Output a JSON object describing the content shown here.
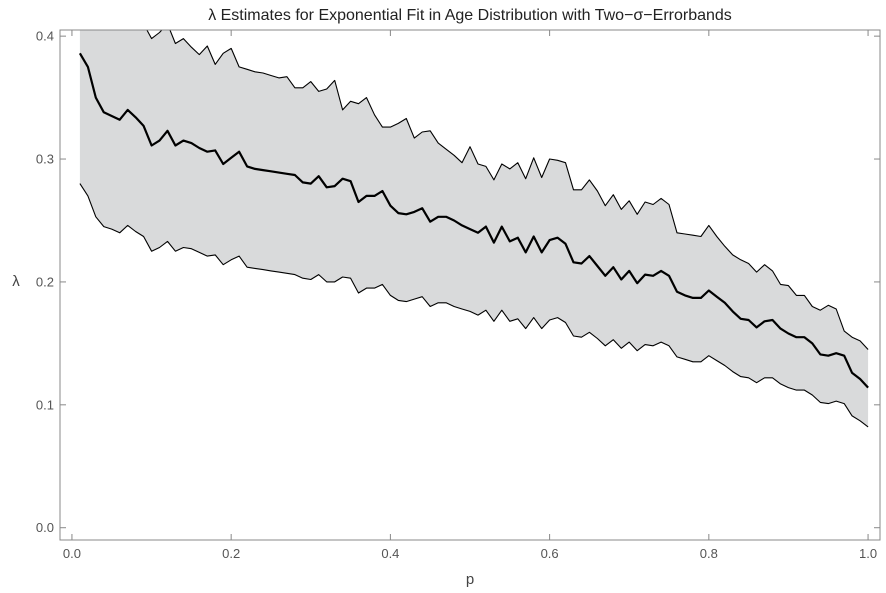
{
  "chart_data": {
    "type": "area",
    "title": "λ Estimates for Exponential Fit in Age Distribution with Two−σ−Errorbands",
    "xlabel": "p",
    "ylabel": "λ",
    "xlim": [
      -0.015,
      1.015
    ],
    "ylim": [
      -0.01,
      0.405
    ],
    "xticks": [
      0.0,
      0.2,
      0.4,
      0.6,
      0.8,
      1.0
    ],
    "xtick_labels": [
      "0.0",
      "0.2",
      "0.4",
      "0.6",
      "0.8",
      "1.0"
    ],
    "yticks": [
      0.0,
      0.1,
      0.2,
      0.3,
      0.4
    ],
    "ytick_labels": [
      "0.0",
      "0.1",
      "0.2",
      "0.3",
      "0.4"
    ],
    "grid": false,
    "colors": {
      "band": "#d9dadb",
      "line": "#000000",
      "frame": "#888888"
    },
    "x": [
      0.01,
      0.02,
      0.03,
      0.04,
      0.05,
      0.06,
      0.07,
      0.08,
      0.09,
      0.1,
      0.11,
      0.12,
      0.13,
      0.14,
      0.15,
      0.16,
      0.17,
      0.18,
      0.19,
      0.2,
      0.21,
      0.22,
      0.23,
      0.24,
      0.25,
      0.26,
      0.27,
      0.28,
      0.29,
      0.3,
      0.31,
      0.32,
      0.33,
      0.34,
      0.35,
      0.36,
      0.37,
      0.38,
      0.39,
      0.4,
      0.41,
      0.42,
      0.43,
      0.44,
      0.45,
      0.46,
      0.47,
      0.48,
      0.49,
      0.5,
      0.51,
      0.52,
      0.53,
      0.54,
      0.55,
      0.56,
      0.57,
      0.58,
      0.59,
      0.6,
      0.61,
      0.62,
      0.63,
      0.64,
      0.65,
      0.66,
      0.67,
      0.68,
      0.69,
      0.7,
      0.71,
      0.72,
      0.73,
      0.74,
      0.75,
      0.76,
      0.77,
      0.78,
      0.79,
      0.8,
      0.81,
      0.82,
      0.83,
      0.84,
      0.85,
      0.86,
      0.87,
      0.88,
      0.89,
      0.9,
      0.91,
      0.92,
      0.93,
      0.94,
      0.95,
      0.96,
      0.97,
      0.98,
      0.99,
      1.0
    ],
    "series": [
      {
        "role": "estimate",
        "values": [
          0.386,
          0.375,
          0.35,
          0.338,
          0.335,
          0.332,
          0.34,
          0.334,
          0.327,
          0.311,
          0.315,
          0.323,
          0.311,
          0.315,
          0.313,
          0.309,
          0.306,
          0.307,
          0.296,
          0.301,
          0.306,
          0.294,
          0.292,
          0.291,
          0.29,
          0.289,
          0.288,
          0.287,
          0.281,
          0.28,
          0.286,
          0.277,
          0.278,
          0.284,
          0.282,
          0.265,
          0.27,
          0.27,
          0.274,
          0.262,
          0.256,
          0.255,
          0.257,
          0.26,
          0.249,
          0.253,
          0.253,
          0.25,
          0.246,
          0.243,
          0.24,
          0.245,
          0.232,
          0.245,
          0.233,
          0.236,
          0.224,
          0.237,
          0.224,
          0.234,
          0.236,
          0.231,
          0.216,
          0.215,
          0.221,
          0.213,
          0.205,
          0.212,
          0.202,
          0.209,
          0.199,
          0.206,
          0.205,
          0.209,
          0.205,
          0.192,
          0.189,
          0.187,
          0.187,
          0.193,
          0.188,
          0.183,
          0.176,
          0.17,
          0.169,
          0.163,
          0.168,
          0.169,
          0.162,
          0.158,
          0.155,
          0.155,
          0.15,
          0.141,
          0.14,
          0.142,
          0.14,
          0.126,
          0.121,
          0.114
        ]
      },
      {
        "role": "upper",
        "values": [
          0.41,
          0.41,
          0.41,
          0.41,
          0.41,
          0.41,
          0.41,
          0.41,
          0.41,
          0.398,
          0.403,
          0.41,
          0.394,
          0.398,
          0.391,
          0.385,
          0.392,
          0.377,
          0.386,
          0.39,
          0.375,
          0.373,
          0.371,
          0.37,
          0.368,
          0.366,
          0.367,
          0.358,
          0.358,
          0.363,
          0.355,
          0.357,
          0.364,
          0.34,
          0.347,
          0.345,
          0.35,
          0.336,
          0.326,
          0.326,
          0.329,
          0.333,
          0.317,
          0.322,
          0.323,
          0.313,
          0.308,
          0.303,
          0.297,
          0.31,
          0.296,
          0.294,
          0.283,
          0.296,
          0.292,
          0.297,
          0.284,
          0.301,
          0.285,
          0.3,
          0.299,
          0.297,
          0.275,
          0.275,
          0.283,
          0.274,
          0.262,
          0.271,
          0.259,
          0.266,
          0.255,
          0.265,
          0.263,
          0.268,
          0.263,
          0.24,
          0.239,
          0.238,
          0.237,
          0.246,
          0.237,
          0.229,
          0.222,
          0.218,
          0.215,
          0.208,
          0.214,
          0.209,
          0.198,
          0.197,
          0.189,
          0.189,
          0.18,
          0.177,
          0.181,
          0.178,
          0.16,
          0.155,
          0.152,
          0.145
        ]
      },
      {
        "role": "lower",
        "values": [
          0.28,
          0.27,
          0.253,
          0.245,
          0.243,
          0.24,
          0.246,
          0.241,
          0.237,
          0.225,
          0.228,
          0.233,
          0.225,
          0.228,
          0.227,
          0.224,
          0.221,
          0.222,
          0.214,
          0.218,
          0.221,
          0.212,
          0.211,
          0.21,
          0.209,
          0.208,
          0.207,
          0.206,
          0.203,
          0.202,
          0.206,
          0.2,
          0.2,
          0.204,
          0.203,
          0.191,
          0.195,
          0.195,
          0.198,
          0.189,
          0.185,
          0.184,
          0.186,
          0.188,
          0.18,
          0.183,
          0.183,
          0.18,
          0.178,
          0.176,
          0.173,
          0.177,
          0.168,
          0.177,
          0.168,
          0.17,
          0.162,
          0.171,
          0.162,
          0.169,
          0.171,
          0.167,
          0.156,
          0.155,
          0.159,
          0.154,
          0.148,
          0.153,
          0.146,
          0.151,
          0.144,
          0.149,
          0.148,
          0.151,
          0.148,
          0.139,
          0.137,
          0.135,
          0.135,
          0.14,
          0.136,
          0.132,
          0.127,
          0.123,
          0.122,
          0.118,
          0.122,
          0.122,
          0.117,
          0.114,
          0.112,
          0.112,
          0.108,
          0.102,
          0.101,
          0.103,
          0.101,
          0.091,
          0.087,
          0.082
        ]
      }
    ]
  }
}
